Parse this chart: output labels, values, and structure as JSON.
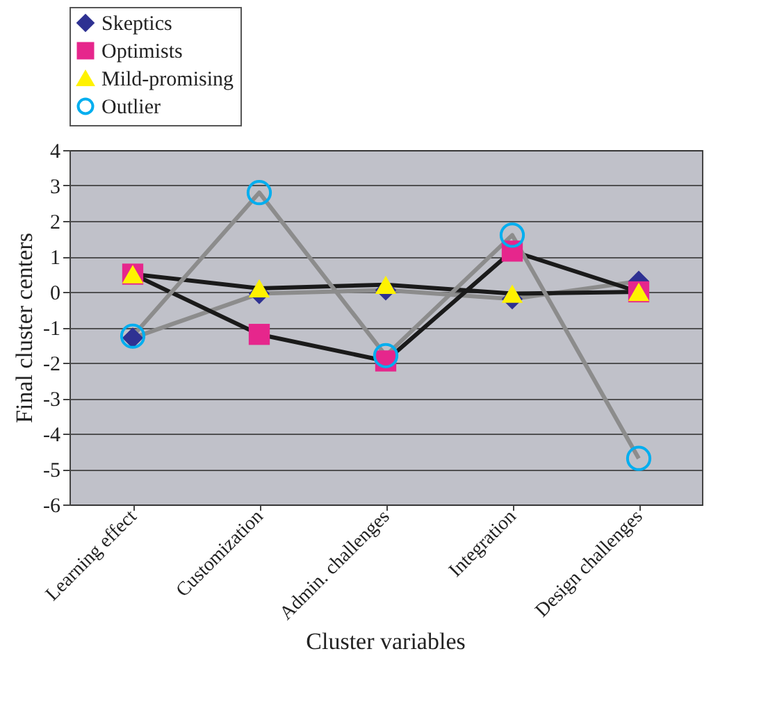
{
  "chart_data": {
    "type": "line",
    "xlabel": "Cluster variables",
    "ylabel": "Final cluster centers",
    "categories": [
      "Learning effect",
      "Customization",
      "Admin. challenges",
      "Integration",
      "Design challenges"
    ],
    "series": [
      {
        "name": "Skeptics",
        "color": "#2e3192",
        "marker": "diamond",
        "values": [
          -1.3,
          -0.05,
          0.05,
          -0.2,
          0.3
        ]
      },
      {
        "name": "Optimists",
        "color": "#e6268c",
        "marker": "square",
        "values": [
          0.5,
          -1.2,
          -1.95,
          1.15,
          0.0
        ]
      },
      {
        "name": "Mild-promising",
        "color": "#fff200",
        "marker": "triangle",
        "values": [
          0.5,
          0.1,
          0.2,
          -0.05,
          0.0
        ]
      },
      {
        "name": "Outlier",
        "color": "#00aeef",
        "marker": "circle",
        "values": [
          -1.25,
          2.8,
          -1.8,
          1.6,
          -4.7
        ]
      }
    ],
    "ylim": [
      -6,
      4
    ],
    "yticks": [
      -6,
      -5,
      -4,
      -3,
      -2,
      -1,
      0,
      1,
      2,
      3,
      4
    ],
    "grid": "y",
    "legend": "top"
  }
}
